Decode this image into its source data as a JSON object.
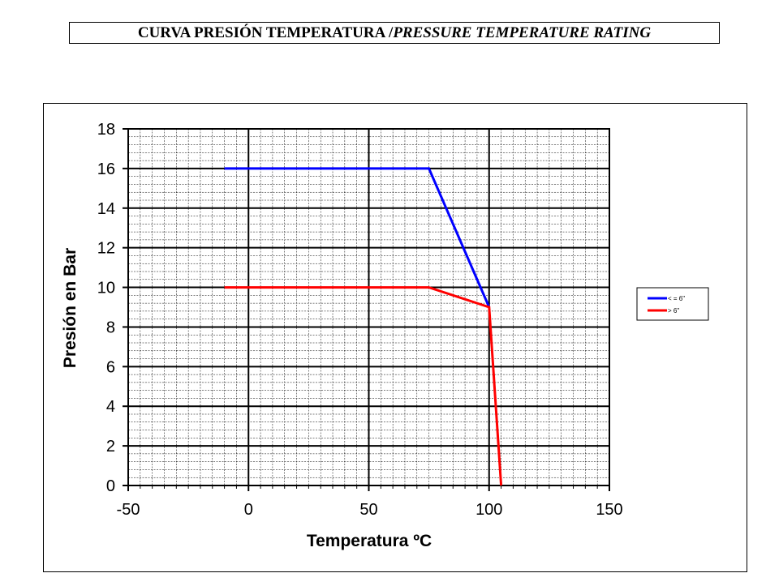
{
  "header": {
    "title_es": "CURVA PRESIÓN TEMPERATURA / ",
    "title_en": "PRESSURE TEMPERATURE RATING"
  },
  "chart_data": {
    "type": "line",
    "xlabel": "Temperatura ºC",
    "ylabel": "Presión en Bar",
    "xlim": [
      -50,
      150
    ],
    "ylim": [
      0,
      18
    ],
    "x_ticks": [
      -50,
      0,
      50,
      100,
      150
    ],
    "y_ticks": [
      0,
      2,
      4,
      6,
      8,
      10,
      12,
      14,
      16,
      18
    ],
    "x_minor_step": 5,
    "y_minor_step": 0.4,
    "grid": true,
    "legend_position": "right",
    "series": [
      {
        "name": "< = 6\"",
        "color": "#0000ff",
        "points": [
          [
            -10,
            16
          ],
          [
            75,
            16
          ],
          [
            100,
            9
          ]
        ]
      },
      {
        "name": "> 6\"",
        "color": "#ff0000",
        "points": [
          [
            -10,
            10
          ],
          [
            75,
            10
          ],
          [
            100,
            9
          ],
          [
            105,
            0
          ]
        ]
      }
    ]
  }
}
